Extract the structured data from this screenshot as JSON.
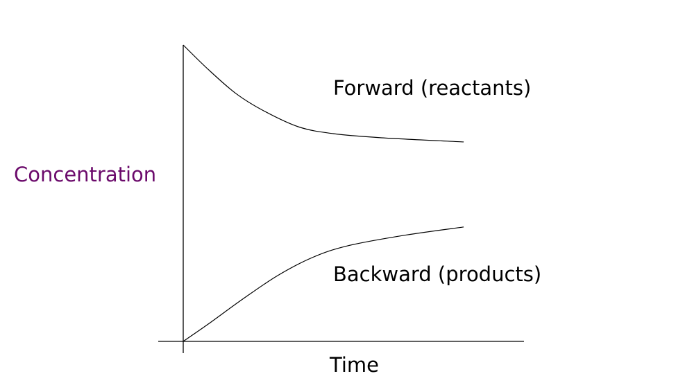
{
  "chart_data": {
    "type": "line",
    "title": "",
    "xlabel": "Time",
    "ylabel": "Concentration",
    "grid": false,
    "xlim": [
      0,
      10
    ],
    "ylim": [
      0,
      10
    ],
    "series": [
      {
        "name": "Forward (reactants)",
        "x": [
          0,
          0.73,
          1.55,
          2.36,
          3.38,
          4.4,
          5.82,
          8.23
        ],
        "y": [
          10,
          9.18,
          8.36,
          7.78,
          7.24,
          7.01,
          6.87,
          6.73
        ]
      },
      {
        "name": "Backward (products)",
        "x": [
          0,
          0.73,
          1.75,
          2.77,
          3.79,
          4.81,
          6.44,
          8.23
        ],
        "y": [
          0,
          0.58,
          1.43,
          2.22,
          2.83,
          3.22,
          3.57,
          3.86
        ]
      }
    ],
    "colors": {
      "line": "#000000",
      "ylabel": "#6b0a6b",
      "text": "#000000"
    }
  }
}
